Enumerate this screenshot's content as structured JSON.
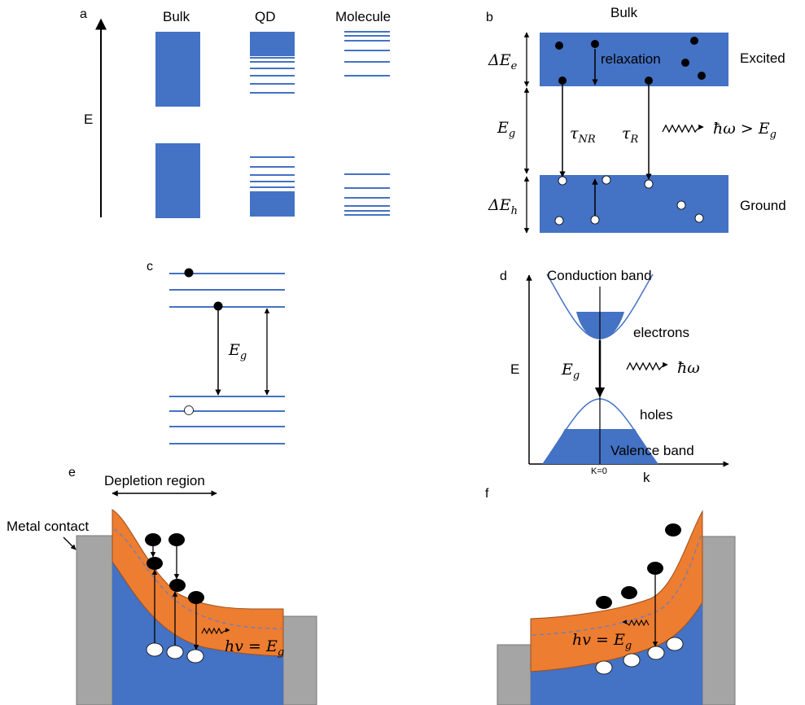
{
  "colors": {
    "band_blue": "#4472C4",
    "band_orange": "#ED7D31",
    "contact_gray": "#A5A5A5"
  },
  "panel_a": {
    "letter": "a",
    "col_bulk": "Bulk",
    "col_qd": "QD",
    "col_molecule": "Molecule",
    "axis_label": "E"
  },
  "panel_b": {
    "letter": "b",
    "title": "Bulk",
    "delta_e": "ΔEe",
    "delta_e_base": "ΔE",
    "delta_e_sub": "e",
    "relaxation": "relaxation",
    "excited": "Excited",
    "eg_base": "E",
    "eg_sub": "g",
    "tau_nr_base": "τ",
    "tau_nr_sub": "NR",
    "tau_r_base": "τ",
    "tau_r_sub": "R",
    "photon": "ħω > E",
    "photon_sub": "g",
    "delta_h_base": "ΔE",
    "delta_h_sub": "h",
    "ground": "Ground"
  },
  "panel_c": {
    "letter": "c",
    "eg_base": "E",
    "eg_sub": "g"
  },
  "panel_d": {
    "letter": "d",
    "conduction": "Conduction band",
    "electrons": "electrons",
    "axis_e": "E",
    "eg_base": "E",
    "eg_sub": "g",
    "photon": "ħω",
    "holes": "holes",
    "valence": "Valence band",
    "k0": "K=0",
    "k": "k"
  },
  "panel_e": {
    "letter": "e",
    "depletion": "Depletion region",
    "metal_contact": "Metal contact",
    "hv": "hv = E",
    "hv_sub": "g"
  },
  "panel_f": {
    "letter": "f",
    "hv": "hv = E",
    "hv_sub": "g"
  }
}
